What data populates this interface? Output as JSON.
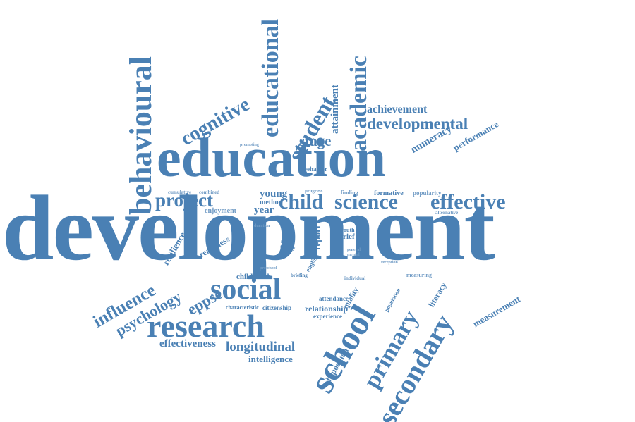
{
  "accent_color": "#4a80b4",
  "words": {
    "development": "development",
    "education": "education",
    "behavioural": "behavioural",
    "educational": "educational",
    "academic": "academic",
    "student": "student",
    "cognitive": "cognitive",
    "attainment": "attainment",
    "achievement": "achievement",
    "developmental": "developmental",
    "numeracy": "numeracy",
    "performance": "performance",
    "stage": "stage",
    "promoting": "promoting",
    "behavior": "behavior",
    "project": "project",
    "child": "child",
    "science": "science",
    "effective": "effective",
    "young": "young",
    "method": "method",
    "year": "year",
    "enjoyment": "enjoyment",
    "cumulative": "cumulative",
    "combined": "combined",
    "progress": "progress",
    "finding": "finding",
    "formative": "formative",
    "popularity": "popularity",
    "resilience": "resilience",
    "readiness": "readiness",
    "influence": "influence",
    "psychology": "psychology",
    "eppse": "eppse",
    "social": "social",
    "research": "research",
    "school": "school",
    "primary": "primary",
    "secondary": "secondary",
    "childhood": "childhood",
    "attendance": "attendance",
    "characteristic": "characteristic",
    "citizenship": "citizenship",
    "relationship": "relationship",
    "experience": "experience",
    "effectiveness": "effectiveness",
    "longitudinal": "longitudinal",
    "intelligence": "intelligence",
    "disposition": "disposition",
    "quality": "quality",
    "literacy": "literacy",
    "measuring": "measuring",
    "measurement": "measurement",
    "population": "population",
    "english": "english",
    "report": "report",
    "brief": "brief",
    "youth": "youth",
    "birth": "birth",
    "niche": "niche",
    "family": "family",
    "briefing": "briefing",
    "individual": "individual",
    "alternative": "alternative",
    "reception": "reception",
    "duration": "duration",
    "general": "general",
    "preschool": "preschool",
    "mental": "mental"
  }
}
